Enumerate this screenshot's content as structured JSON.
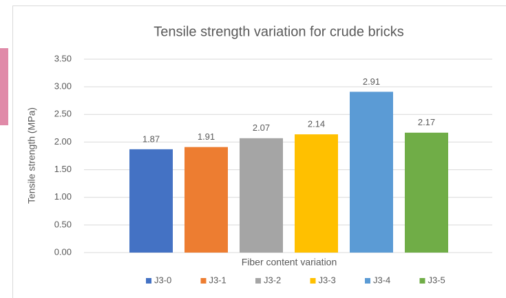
{
  "chart_data": {
    "type": "bar",
    "title": "Tensile strength variation for crude bricks",
    "x_label": "Fiber content variation",
    "y_label": "Tensile strength (MPa)",
    "categories": [
      null
    ],
    "series": [
      {
        "name": "J3-0",
        "color": "#4472c4",
        "values": [
          1.87
        ]
      },
      {
        "name": "J3-1",
        "color": "#ed7d31",
        "values": [
          1.91
        ]
      },
      {
        "name": "J3-2",
        "color": "#a5a5a5",
        "values": [
          2.07
        ]
      },
      {
        "name": "J3-3",
        "color": "#ffc000",
        "values": [
          2.14
        ]
      },
      {
        "name": "J3-4",
        "color": "#5b9bd5",
        "values": [
          2.91
        ]
      },
      {
        "name": "J3-5",
        "color": "#70ad47",
        "values": [
          2.17
        ]
      }
    ],
    "ylim": [
      0,
      3.5
    ],
    "yticks": [
      {
        "value": 0,
        "label": "0.00"
      },
      {
        "value": 0.5,
        "label": "0.50"
      },
      {
        "value": 1,
        "label": "1.00"
      },
      {
        "value": 1.5,
        "label": "1.50"
      },
      {
        "value": 2,
        "label": "2.00"
      },
      {
        "value": 2.5,
        "label": "2.50"
      },
      {
        "value": 3,
        "label": "3.00"
      },
      {
        "value": 3.5,
        "label": "3.50"
      }
    ],
    "grid": true,
    "legend": "bottom"
  }
}
